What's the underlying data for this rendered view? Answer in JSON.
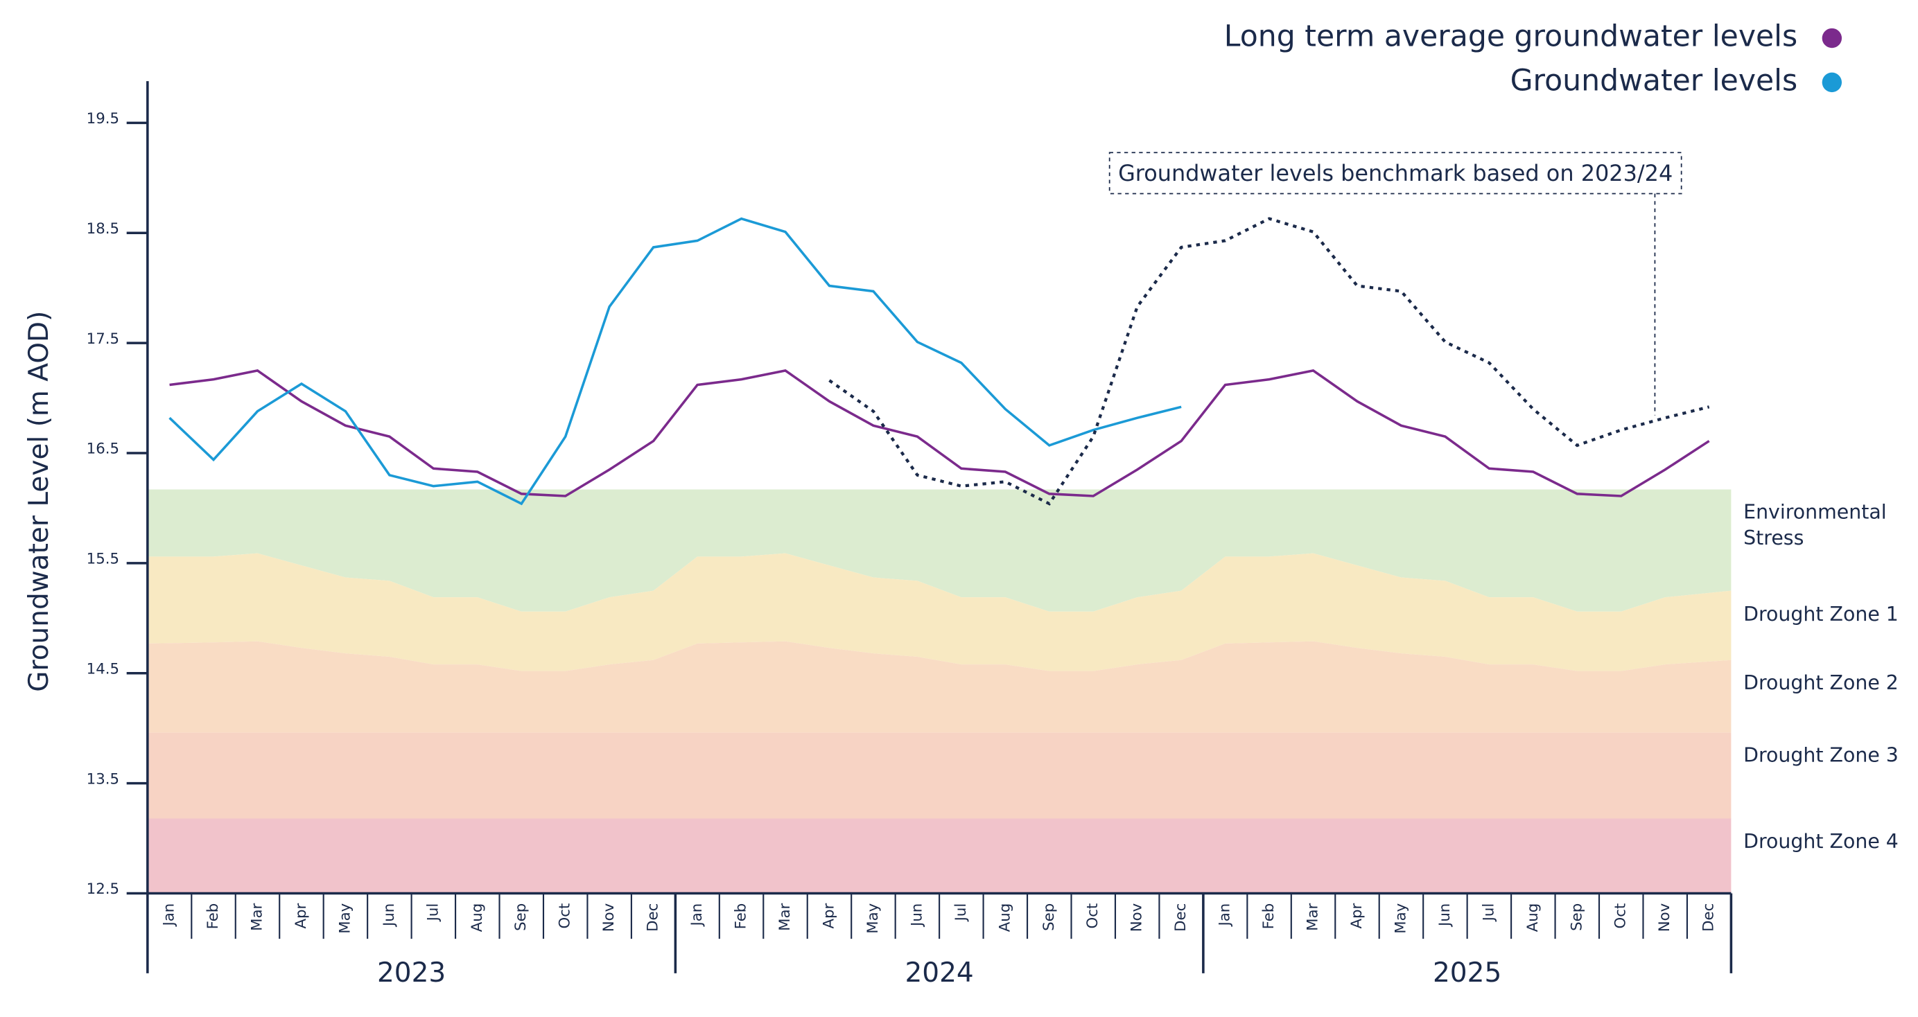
{
  "chart_data": {
    "type": "line",
    "y_label": "Groundwater Level (m AOD)",
    "annotation": "Groundwater levels benchmark based on 2023/24",
    "legend": "top-right",
    "categories": [
      "Jan",
      "Feb",
      "Mar",
      "Apr",
      "May",
      "Jun",
      "Jul",
      "Aug",
      "Sep",
      "Oct",
      "Nov",
      "Dec",
      "Jan",
      "Feb",
      "Mar",
      "Apr",
      "May",
      "Jun",
      "Jul",
      "Aug",
      "Sep",
      "Oct",
      "Nov",
      "Dec",
      "Jan",
      "Feb",
      "Mar",
      "Apr",
      "May",
      "Jun",
      "Jul",
      "Aug",
      "Sep",
      "Oct",
      "Nov",
      "Dec"
    ],
    "groups": [
      "2023",
      "2024",
      "2025"
    ],
    "ylim": [
      12.5,
      19.5
    ],
    "yticks": [
      12.5,
      13.5,
      14.5,
      15.5,
      16.5,
      17.5,
      18.5,
      19.5
    ],
    "series": [
      {
        "name": "Long term average groundwater levels",
        "color": "#7b2a8c",
        "values": [
          17.12,
          17.17,
          17.25,
          16.97,
          16.75,
          16.65,
          16.36,
          16.33,
          16.13,
          16.11,
          16.35,
          16.61,
          17.12,
          17.17,
          17.25,
          16.97,
          16.75,
          16.65,
          16.36,
          16.33,
          16.13,
          16.11,
          16.35,
          16.61,
          17.12,
          17.17,
          17.25,
          16.97,
          16.75,
          16.65,
          16.36,
          16.33,
          16.13,
          16.11,
          16.35,
          16.61
        ]
      },
      {
        "name": "Groundwater levels",
        "color": "#1b9ad6",
        "values": [
          16.82,
          16.44,
          16.88,
          17.13,
          16.88,
          16.3,
          16.2,
          16.24,
          16.04,
          16.65,
          17.83,
          18.37,
          18.43,
          18.63,
          18.51,
          18.02,
          17.97,
          17.51,
          17.32,
          16.9,
          16.57,
          16.71,
          16.82,
          16.92,
          null,
          null,
          null,
          null,
          null,
          null,
          null,
          null,
          null,
          null,
          null,
          null
        ]
      },
      {
        "color": "#1b2a4a",
        "style": "dotted",
        "values": [
          null,
          null,
          null,
          null,
          null,
          null,
          null,
          null,
          null,
          null,
          null,
          null,
          null,
          null,
          null,
          17.16,
          16.88,
          16.3,
          16.2,
          16.24,
          16.04,
          16.65,
          17.83,
          18.37,
          18.43,
          18.63,
          18.51,
          18.02,
          17.97,
          17.51,
          17.32,
          16.9,
          16.57,
          16.71,
          16.82,
          16.92
        ]
      }
    ],
    "zones": [
      {
        "name": "Environmental Stress",
        "color": "#dcecd0",
        "values": [
          16.17,
          16.17,
          16.17,
          16.17,
          16.17,
          16.17,
          16.17,
          16.17,
          16.17,
          16.17,
          16.17,
          16.17,
          16.17,
          16.17,
          16.17,
          16.17,
          16.17,
          16.17,
          16.17,
          16.17,
          16.17,
          16.17,
          16.17,
          16.17,
          16.17,
          16.17,
          16.17,
          16.17,
          16.17,
          16.17,
          16.17,
          16.17,
          16.17,
          16.17,
          16.17,
          16.17
        ]
      },
      {
        "name": "Drought Zone 1",
        "color": "#f8e9c2",
        "values": [
          15.56,
          15.56,
          15.59,
          15.48,
          15.37,
          15.34,
          15.19,
          15.19,
          15.06,
          15.06,
          15.19,
          15.25,
          15.56,
          15.56,
          15.59,
          15.48,
          15.37,
          15.34,
          15.19,
          15.19,
          15.06,
          15.06,
          15.19,
          15.25,
          15.56,
          15.56,
          15.59,
          15.48,
          15.37,
          15.34,
          15.19,
          15.19,
          15.06,
          15.06,
          15.19,
          15.25
        ]
      },
      {
        "name": "Drought Zone 2",
        "color": "#f9dcc4",
        "values": [
          14.77,
          14.78,
          14.79,
          14.73,
          14.68,
          14.65,
          14.58,
          14.58,
          14.52,
          14.52,
          14.58,
          14.62,
          14.77,
          14.78,
          14.79,
          14.73,
          14.68,
          14.65,
          14.58,
          14.58,
          14.52,
          14.52,
          14.58,
          14.62,
          14.77,
          14.78,
          14.79,
          14.73,
          14.68,
          14.65,
          14.58,
          14.58,
          14.52,
          14.52,
          14.58,
          14.62
        ]
      },
      {
        "name": "Drought Zone 3",
        "color": "#f7d3c4",
        "values": [
          13.96,
          13.96,
          13.96,
          13.96,
          13.96,
          13.96,
          13.96,
          13.96,
          13.96,
          13.96,
          13.96,
          13.96,
          13.96,
          13.96,
          13.96,
          13.96,
          13.96,
          13.96,
          13.96,
          13.96,
          13.96,
          13.96,
          13.96,
          13.96,
          13.96,
          13.96,
          13.96,
          13.96,
          13.96,
          13.96,
          13.96,
          13.96,
          13.96,
          13.96,
          13.96,
          13.96
        ]
      },
      {
        "name": "Drought Zone 4",
        "color": "#f1c3cb",
        "values": [
          13.18,
          13.18,
          13.18,
          13.18,
          13.18,
          13.18,
          13.18,
          13.18,
          13.18,
          13.18,
          13.18,
          13.18,
          13.18,
          13.18,
          13.18,
          13.18,
          13.18,
          13.18,
          13.18,
          13.18,
          13.18,
          13.18,
          13.18,
          13.18,
          13.18,
          13.18,
          13.18,
          13.18,
          13.18,
          13.18,
          13.18,
          13.18,
          13.18,
          13.18,
          13.18,
          13.18
        ]
      }
    ]
  }
}
